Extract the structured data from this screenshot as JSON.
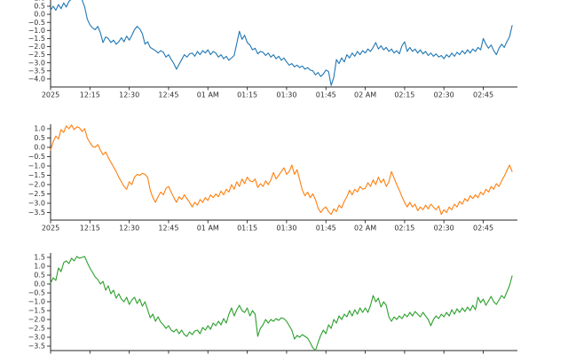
{
  "figure": {
    "background": "#ffffff",
    "axis_color": "#262626",
    "tick_label_color": "#2e2e2e",
    "x_tick_labels": [
      "2025",
      "12:15",
      "12:30",
      "12:45",
      "01 AM",
      "01:15",
      "01:30",
      "01:45",
      "02 AM",
      "02:15",
      "02:30",
      "02:45"
    ],
    "x_tick_minutes": [
      0,
      15,
      30,
      45,
      60,
      75,
      90,
      105,
      120,
      135,
      150,
      165
    ]
  },
  "chart_data": [
    {
      "type": "line",
      "name": "top-series",
      "color": "#1f77b4",
      "x_axis": "time, 1-minute steps from 12:00 AM",
      "x_minutes_start": 0,
      "x_minutes_step": 1,
      "y_ticks": [
        1.0,
        0.5,
        0.0,
        -0.5,
        -1.0,
        -1.5,
        -2.0,
        -2.5,
        -3.0,
        -3.5,
        -4.0
      ],
      "ylim": [
        -4.55,
        1.35
      ],
      "grid": false,
      "values": [
        0.25,
        0.5,
        0.25,
        0.6,
        0.35,
        0.7,
        0.45,
        0.8,
        0.95,
        1.1,
        1.25,
        1.15,
        0.9,
        0.45,
        -0.3,
        -0.65,
        -0.85,
        -0.95,
        -0.75,
        -1.15,
        -1.75,
        -1.4,
        -1.5,
        -1.75,
        -1.6,
        -1.85,
        -1.7,
        -1.45,
        -1.7,
        -1.35,
        -1.6,
        -1.3,
        -0.95,
        -0.75,
        -0.9,
        -1.2,
        -1.85,
        -1.7,
        -2.05,
        -2.15,
        -2.25,
        -2.4,
        -2.25,
        -2.35,
        -2.65,
        -2.5,
        -2.8,
        -3.05,
        -3.4,
        -3.1,
        -2.8,
        -2.5,
        -2.65,
        -2.45,
        -2.4,
        -2.6,
        -2.3,
        -2.5,
        -2.25,
        -2.4,
        -2.2,
        -2.5,
        -2.3,
        -2.4,
        -2.65,
        -2.5,
        -2.75,
        -2.6,
        -2.85,
        -2.7,
        -2.55,
        -1.8,
        -1.05,
        -1.55,
        -1.3,
        -1.75,
        -1.9,
        -2.2,
        -2.1,
        -2.45,
        -2.3,
        -2.35,
        -2.55,
        -2.4,
        -2.65,
        -2.5,
        -2.75,
        -2.6,
        -2.85,
        -2.7,
        -2.95,
        -3.15,
        -3.05,
        -3.25,
        -3.15,
        -3.3,
        -3.2,
        -3.4,
        -3.3,
        -3.45,
        -3.5,
        -3.75,
        -3.6,
        -3.85,
        -3.7,
        -3.45,
        -3.55,
        -4.4,
        -3.9,
        -2.8,
        -3.05,
        -2.7,
        -2.95,
        -2.5,
        -2.7,
        -2.4,
        -2.6,
        -2.3,
        -2.5,
        -2.25,
        -2.4,
        -2.15,
        -2.3,
        -2.05,
        -1.75,
        -2.15,
        -1.95,
        -2.2,
        -2.05,
        -2.3,
        -2.15,
        -2.4,
        -2.25,
        -2.45,
        -1.95,
        -1.7,
        -2.3,
        -2.05,
        -2.3,
        -2.15,
        -2.4,
        -2.2,
        -2.45,
        -2.3,
        -2.55,
        -2.4,
        -2.6,
        -2.45,
        -2.65,
        -2.55,
        -2.75,
        -2.5,
        -2.65,
        -2.4,
        -2.6,
        -2.35,
        -2.5,
        -2.25,
        -2.45,
        -2.2,
        -2.4,
        -2.15,
        -2.3,
        -2.05,
        -2.2,
        -1.5,
        -1.85,
        -2.1,
        -1.9,
        -2.25,
        -2.5,
        -2.1,
        -1.85,
        -2.05,
        -1.7,
        -1.4,
        -0.7
      ]
    },
    {
      "type": "line",
      "name": "middle-series",
      "color": "#ff7f0e",
      "x_axis": "time, 1-minute steps from 12:00 AM",
      "x_minutes_start": 0,
      "x_minutes_step": 1,
      "y_ticks": [
        1.0,
        0.5,
        0.0,
        -0.5,
        -1.0,
        -1.5,
        -2.0,
        -2.5,
        -3.0,
        -3.5
      ],
      "ylim": [
        -3.9,
        1.25
      ],
      "grid": false,
      "values": [
        -0.15,
        0.3,
        0.6,
        0.45,
        0.95,
        0.8,
        1.15,
        1.0,
        1.2,
        0.95,
        1.1,
        1.05,
        0.85,
        1.0,
        0.5,
        0.25,
        0.05,
        0.0,
        0.15,
        -0.15,
        -0.4,
        -0.25,
        -0.55,
        -0.8,
        -1.05,
        -1.3,
        -1.6,
        -1.85,
        -2.1,
        -2.25,
        -1.85,
        -2.0,
        -1.6,
        -1.45,
        -1.5,
        -1.4,
        -1.45,
        -1.6,
        -2.3,
        -2.7,
        -2.95,
        -2.65,
        -2.4,
        -2.55,
        -2.2,
        -2.1,
        -2.4,
        -2.7,
        -2.95,
        -2.65,
        -2.8,
        -2.55,
        -2.75,
        -2.95,
        -3.2,
        -2.95,
        -3.1,
        -2.8,
        -2.95,
        -2.7,
        -2.85,
        -2.55,
        -2.7,
        -2.5,
        -2.65,
        -2.35,
        -2.55,
        -2.25,
        -2.4,
        -2.0,
        -2.25,
        -1.85,
        -2.1,
        -1.7,
        -1.95,
        -1.6,
        -1.8,
        -1.85,
        -1.7,
        -2.15,
        -1.95,
        -2.1,
        -1.8,
        -2.0,
        -1.75,
        -1.35,
        -1.7,
        -1.5,
        -1.3,
        -1.1,
        -1.45,
        -1.3,
        -0.95,
        -1.45,
        -1.2,
        -1.75,
        -2.3,
        -2.6,
        -2.4,
        -2.7,
        -2.5,
        -2.8,
        -3.25,
        -3.5,
        -3.3,
        -3.2,
        -3.45,
        -3.6,
        -3.3,
        -3.45,
        -3.1,
        -3.25,
        -2.9,
        -2.65,
        -2.3,
        -2.55,
        -2.25,
        -2.4,
        -2.1,
        -2.25,
        -2.2,
        -1.9,
        -2.1,
        -1.75,
        -2.0,
        -1.6,
        -1.9,
        -1.7,
        -2.1,
        -1.85,
        -1.3,
        -1.65,
        -2.0,
        -2.3,
        -2.65,
        -2.95,
        -3.2,
        -2.95,
        -3.2,
        -3.05,
        -3.4,
        -3.2,
        -3.35,
        -3.1,
        -3.3,
        -3.05,
        -3.2,
        -3.35,
        -3.15,
        -3.6,
        -3.35,
        -3.5,
        -3.2,
        -3.35,
        -3.05,
        -3.2,
        -2.9,
        -3.05,
        -2.75,
        -2.9,
        -2.6,
        -2.75,
        -2.55,
        -2.7,
        -2.4,
        -2.55,
        -2.25,
        -2.4,
        -2.1,
        -2.25,
        -1.95,
        -2.1,
        -1.8,
        -1.55,
        -1.25,
        -0.95,
        -1.3
      ]
    },
    {
      "type": "line",
      "name": "bottom-series",
      "color": "#2ca02c",
      "x_axis": "time, 1-minute steps from 12:00 AM (labels cropped)",
      "x_minutes_start": 0,
      "x_minutes_step": 1,
      "y_ticks": [
        1.5,
        1.0,
        0.5,
        0.0,
        -0.5,
        -1.0,
        -1.5,
        -2.0,
        -2.5,
        -3.0,
        -3.5
      ],
      "ylim": [
        -3.75,
        1.75
      ],
      "grid": false,
      "values": [
        0.05,
        0.35,
        0.2,
        0.9,
        0.7,
        1.2,
        1.3,
        1.15,
        1.45,
        1.3,
        1.55,
        1.45,
        1.5,
        1.55,
        1.2,
        0.9,
        0.65,
        0.4,
        0.25,
        0.0,
        0.15,
        -0.35,
        -0.1,
        -0.55,
        -0.35,
        -0.8,
        -0.55,
        -0.85,
        -1.0,
        -0.75,
        -1.15,
        -0.9,
        -0.75,
        -1.1,
        -0.85,
        -1.25,
        -1.0,
        -1.45,
        -1.9,
        -1.7,
        -2.1,
        -1.85,
        -2.15,
        -2.3,
        -2.5,
        -2.35,
        -2.6,
        -2.7,
        -2.55,
        -2.8,
        -2.6,
        -2.85,
        -2.95,
        -2.7,
        -2.85,
        -2.65,
        -2.6,
        -2.8,
        -2.45,
        -2.6,
        -2.35,
        -2.55,
        -2.2,
        -2.35,
        -2.1,
        -2.3,
        -1.95,
        -2.2,
        -1.7,
        -1.35,
        -1.8,
        -1.45,
        -1.2,
        -1.5,
        -1.6,
        -1.35,
        -1.8,
        -1.5,
        -1.7,
        -2.95,
        -2.5,
        -2.3,
        -2.0,
        -2.2,
        -2.0,
        -2.1,
        -1.95,
        -2.05,
        -1.9,
        -1.95,
        -2.1,
        -2.35,
        -2.6,
        -3.1,
        -2.9,
        -3.0,
        -2.85,
        -2.95,
        -3.05,
        -3.3,
        -3.6,
        -3.75,
        -3.3,
        -2.9,
        -2.6,
        -2.8,
        -2.3,
        -2.5,
        -2.0,
        -2.2,
        -1.8,
        -2.0,
        -1.7,
        -1.85,
        -1.5,
        -1.8,
        -1.45,
        -1.7,
        -1.35,
        -1.6,
        -1.35,
        -1.6,
        -1.2,
        -0.65,
        -1.0,
        -0.8,
        -1.3,
        -1.0,
        -1.2,
        -1.85,
        -2.1,
        -1.85,
        -2.0,
        -1.8,
        -1.95,
        -1.7,
        -1.85,
        -1.6,
        -1.8,
        -1.55,
        -1.7,
        -1.85,
        -1.6,
        -1.8,
        -2.0,
        -2.35,
        -2.0,
        -1.8,
        -1.95,
        -1.7,
        -1.85,
        -1.6,
        -1.8,
        -1.45,
        -1.7,
        -1.4,
        -1.6,
        -1.35,
        -1.55,
        -1.3,
        -1.5,
        -1.2,
        -1.45,
        -0.75,
        -1.05,
        -0.85,
        -1.2,
        -0.95,
        -0.7,
        -1.0,
        -1.15,
        -0.9,
        -0.65,
        -0.8,
        -0.45,
        -0.1,
        0.45
      ]
    }
  ]
}
